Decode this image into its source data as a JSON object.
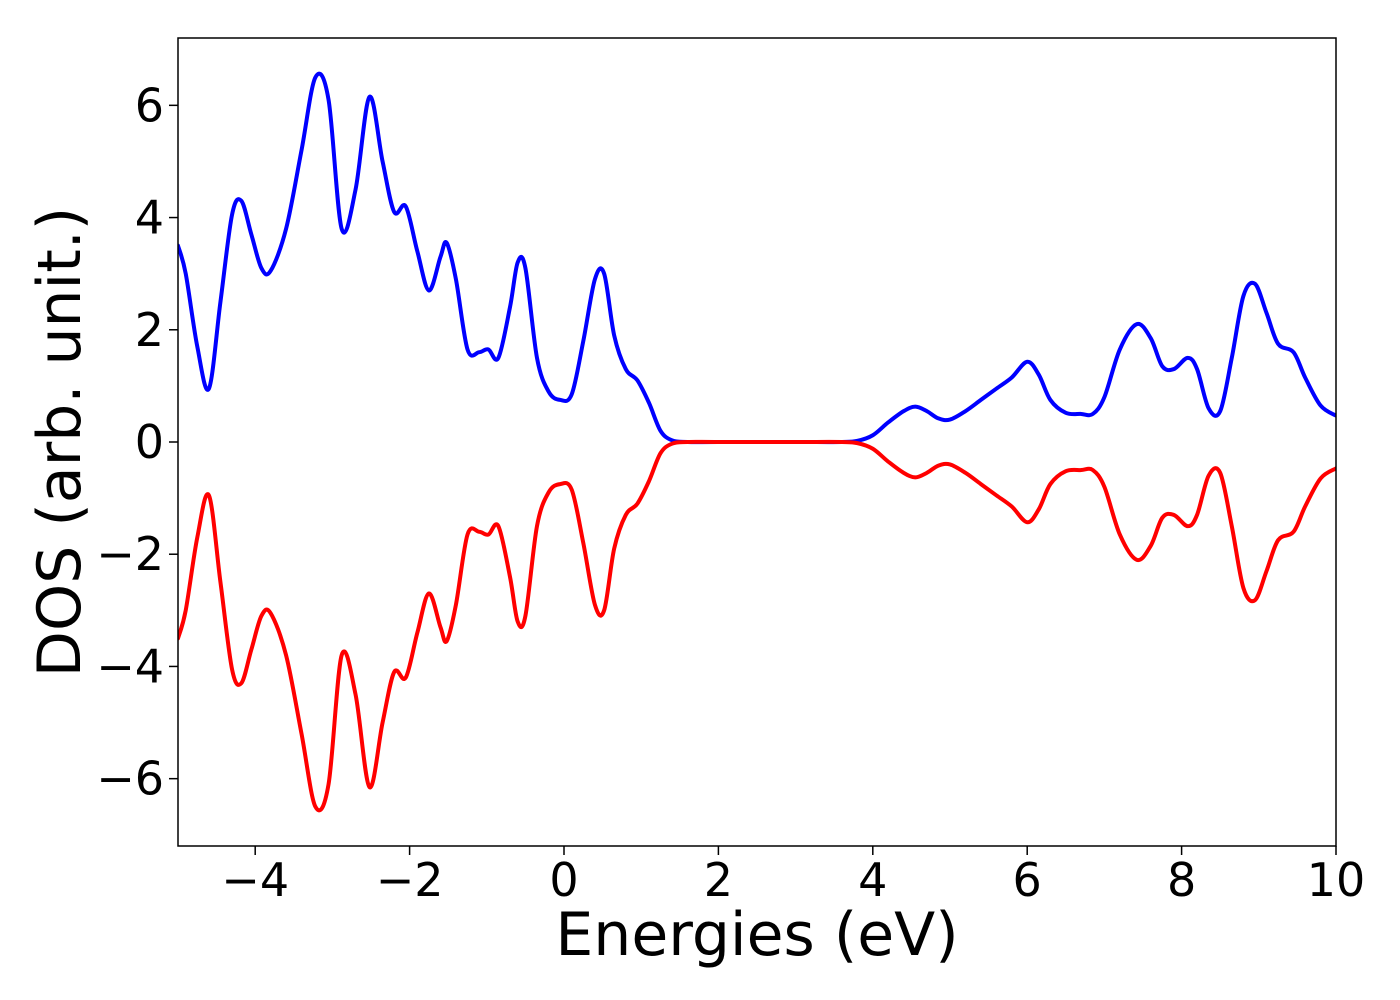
{
  "chart_data": {
    "type": "line",
    "xlabel": "Energies (eV)",
    "ylabel": "DOS (arb. unit.)",
    "xlim": [
      -5,
      10
    ],
    "ylim": [
      -7.2,
      7.2
    ],
    "xticks": [
      -4,
      -2,
      0,
      2,
      4,
      6,
      8,
      10
    ],
    "xtick_labels": [
      "−4",
      "−2",
      "0",
      "2",
      "4",
      "6",
      "8",
      "10"
    ],
    "yticks": [
      -6,
      -4,
      -2,
      0,
      2,
      4,
      6
    ],
    "ytick_labels": [
      "−6",
      "−4",
      "−2",
      "0",
      "2",
      "4",
      "6"
    ],
    "grid": false,
    "legend": "none",
    "series": [
      {
        "color": "#0000ff",
        "x": [
          -5.0,
          -4.9,
          -4.75,
          -4.6,
          -4.45,
          -4.3,
          -4.18,
          -4.05,
          -3.92,
          -3.8,
          -3.6,
          -3.4,
          -3.22,
          -3.05,
          -2.88,
          -2.7,
          -2.52,
          -2.35,
          -2.2,
          -2.05,
          -1.9,
          -1.75,
          -1.6,
          -1.52,
          -1.4,
          -1.25,
          -1.1,
          -0.98,
          -0.85,
          -0.7,
          -0.6,
          -0.5,
          -0.35,
          -0.2,
          -0.05,
          0.1,
          0.25,
          0.4,
          0.52,
          0.65,
          0.8,
          0.95,
          1.1,
          1.25,
          1.4,
          1.6,
          2.0,
          3.0,
          3.6,
          3.8,
          4.0,
          4.2,
          4.4,
          4.55,
          4.7,
          4.85,
          5.0,
          5.2,
          5.4,
          5.6,
          5.8,
          6.0,
          6.15,
          6.3,
          6.5,
          6.7,
          6.85,
          7.0,
          7.2,
          7.42,
          7.6,
          7.75,
          7.9,
          8.08,
          8.2,
          8.35,
          8.5,
          8.65,
          8.8,
          8.95,
          9.1,
          9.25,
          9.45,
          9.6,
          9.8,
          10.0
        ],
        "y": [
          3.5,
          3.0,
          1.7,
          0.95,
          2.5,
          4.05,
          4.3,
          3.7,
          3.1,
          3.05,
          3.8,
          5.2,
          6.5,
          6.1,
          3.8,
          4.5,
          6.15,
          5.0,
          4.1,
          4.2,
          3.4,
          2.7,
          3.3,
          3.55,
          2.9,
          1.65,
          1.6,
          1.65,
          1.5,
          2.4,
          3.2,
          3.1,
          1.5,
          0.9,
          0.75,
          0.85,
          1.8,
          2.9,
          3.0,
          1.9,
          1.3,
          1.1,
          0.7,
          0.2,
          0.03,
          0.0,
          0.0,
          0.0,
          0.0,
          0.02,
          0.12,
          0.35,
          0.55,
          0.63,
          0.55,
          0.42,
          0.4,
          0.55,
          0.75,
          0.95,
          1.15,
          1.43,
          1.2,
          0.75,
          0.52,
          0.5,
          0.5,
          0.8,
          1.65,
          2.1,
          1.85,
          1.35,
          1.3,
          1.5,
          1.3,
          0.6,
          0.55,
          1.5,
          2.6,
          2.82,
          2.3,
          1.75,
          1.6,
          1.15,
          0.65,
          0.47
        ]
      },
      {
        "color": "#ff0000",
        "x": [
          -5.0,
          -4.9,
          -4.75,
          -4.6,
          -4.45,
          -4.3,
          -4.18,
          -4.05,
          -3.92,
          -3.8,
          -3.6,
          -3.4,
          -3.22,
          -3.05,
          -2.88,
          -2.7,
          -2.52,
          -2.35,
          -2.2,
          -2.05,
          -1.9,
          -1.75,
          -1.6,
          -1.52,
          -1.4,
          -1.25,
          -1.1,
          -0.98,
          -0.85,
          -0.7,
          -0.6,
          -0.5,
          -0.35,
          -0.2,
          -0.05,
          0.1,
          0.25,
          0.4,
          0.52,
          0.65,
          0.8,
          0.95,
          1.1,
          1.25,
          1.4,
          1.6,
          2.0,
          3.0,
          3.6,
          3.8,
          4.0,
          4.2,
          4.4,
          4.55,
          4.7,
          4.85,
          5.0,
          5.2,
          5.4,
          5.6,
          5.8,
          6.0,
          6.15,
          6.3,
          6.5,
          6.7,
          6.85,
          7.0,
          7.2,
          7.42,
          7.6,
          7.75,
          7.9,
          8.08,
          8.2,
          8.35,
          8.5,
          8.65,
          8.8,
          8.95,
          9.1,
          9.25,
          9.45,
          9.6,
          9.8,
          10.0
        ],
        "y": [
          -3.5,
          -3.0,
          -1.7,
          -0.95,
          -2.5,
          -4.05,
          -4.3,
          -3.7,
          -3.1,
          -3.05,
          -3.8,
          -5.2,
          -6.5,
          -6.1,
          -3.8,
          -4.5,
          -6.15,
          -5.0,
          -4.1,
          -4.2,
          -3.4,
          -2.7,
          -3.3,
          -3.55,
          -2.9,
          -1.65,
          -1.6,
          -1.65,
          -1.5,
          -2.4,
          -3.2,
          -3.1,
          -1.5,
          -0.9,
          -0.75,
          -0.85,
          -1.8,
          -2.9,
          -3.0,
          -1.9,
          -1.3,
          -1.1,
          -0.7,
          -0.2,
          -0.03,
          0.0,
          0.0,
          0.0,
          0.0,
          -0.02,
          -0.12,
          -0.35,
          -0.55,
          -0.63,
          -0.55,
          -0.42,
          -0.4,
          -0.55,
          -0.75,
          -0.95,
          -1.15,
          -1.43,
          -1.2,
          -0.75,
          -0.52,
          -0.5,
          -0.5,
          -0.8,
          -1.65,
          -2.1,
          -1.85,
          -1.35,
          -1.3,
          -1.5,
          -1.3,
          -0.6,
          -0.55,
          -1.5,
          -2.6,
          -2.82,
          -2.3,
          -1.75,
          -1.6,
          -1.15,
          -0.65,
          -0.47
        ]
      }
    ]
  }
}
